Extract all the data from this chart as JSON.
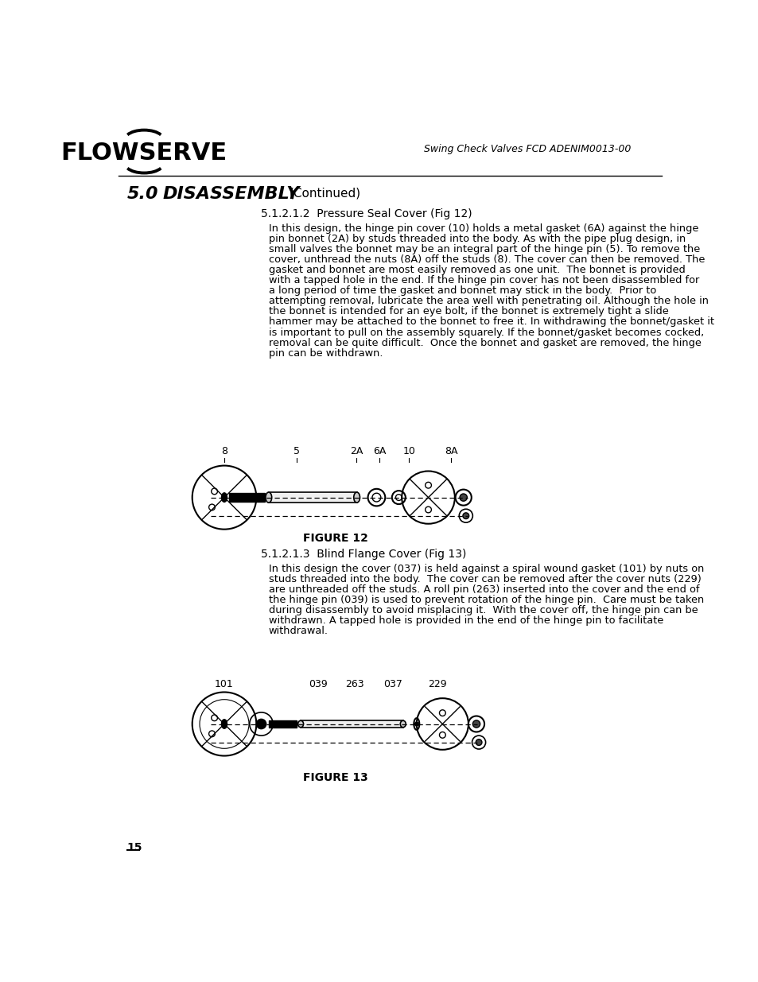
{
  "page_bg": "#ffffff",
  "header_right_text": "Swing Check Valves FCD ADENIM0013-00",
  "section_number": "5.0",
  "section_title": "DISASSEMBLY",
  "section_continued": "(Continued)",
  "subsection_1": "5.1.2.1.2  Pressure Seal Cover (Fig 12)",
  "body_text_1": [
    "In this design, the hinge pin cover (10) holds a metal gasket (6A) against the hinge",
    "pin bonnet (2A) by studs threaded into the body. As with the pipe plug design, in",
    "small valves the bonnet may be an integral part of the hinge pin (5). To remove the",
    "cover, unthread the nuts (8A) off the studs (8). The cover can then be removed. The",
    "gasket and bonnet are most easily removed as one unit.  The bonnet is provided",
    "with a tapped hole in the end. If the hinge pin cover has not been disassembled for",
    "a long period of time the gasket and bonnet may stick in the body.  Prior to",
    "attempting removal, lubricate the area well with penetrating oil. Although the hole in",
    "the bonnet is intended for an eye bolt, if the bonnet is extremely tight a slide",
    "hammer may be attached to the bonnet to free it. In withdrawing the bonnet/gasket it",
    "is important to pull on the assembly squarely. If the bonnet/gasket becomes cocked,",
    "removal can be quite difficult.  Once the bonnet and gasket are removed, the hinge",
    "pin can be withdrawn."
  ],
  "fig12_label": "FIGURE 12",
  "fig12_label_positions": [
    [
      210,
      "8"
    ],
    [
      328,
      "5"
    ],
    [
      424,
      "2A"
    ],
    [
      462,
      "6A"
    ],
    [
      510,
      "10"
    ],
    [
      578,
      "8A"
    ]
  ],
  "subsection_2": "5.1.2.1.3  Blind Flange Cover (Fig 13)",
  "body_text_2": [
    "In this design the cover (037) is held against a spiral wound gasket (101) by nuts on",
    "studs threaded into the body.  The cover can be removed after the cover nuts (229)",
    "are unthreaded off the studs. A roll pin (263) inserted into the cover and the end of",
    "the hinge pin (039) is used to prevent rotation of the hinge pin.  Care must be taken",
    "during disassembly to avoid misplacing it.  With the cover off, the hinge pin can be",
    "withdrawn. A tapped hole is provided in the end of the hinge pin to facilitate",
    "withdrawal."
  ],
  "fig13_label": "FIGURE 13",
  "fig13_label_positions": [
    [
      210,
      "101"
    ],
    [
      362,
      "039"
    ],
    [
      422,
      "263"
    ],
    [
      484,
      "037"
    ],
    [
      556,
      "229"
    ]
  ],
  "page_number": "15"
}
